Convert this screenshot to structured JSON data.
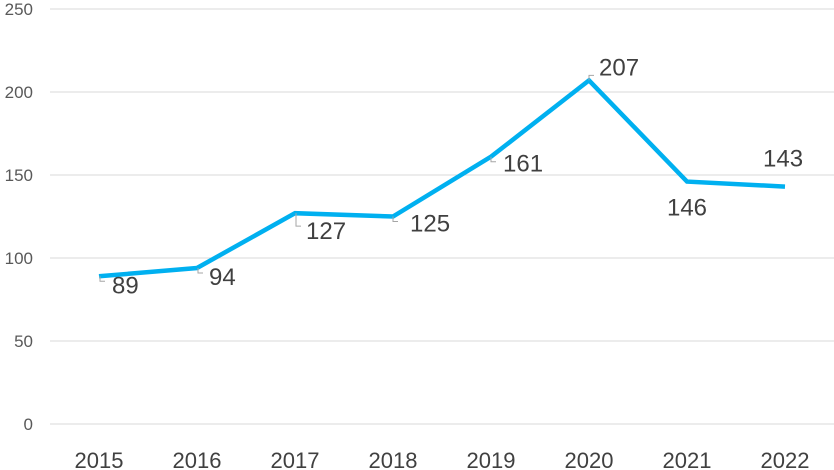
{
  "chart_data": {
    "type": "line",
    "title": "",
    "xlabel": "",
    "ylabel": "",
    "categories": [
      "2015",
      "2016",
      "2017",
      "2018",
      "2019",
      "2020",
      "2021",
      "2022"
    ],
    "series": [
      {
        "values": [
          89,
          94,
          127,
          125,
          161,
          207,
          146,
          143
        ],
        "color": "#00b0f0"
      }
    ],
    "data_labels": [
      "89",
      "94",
      "127",
      "125",
      "161",
      "207",
      "146",
      "143"
    ],
    "ylim": [
      0,
      250
    ],
    "yticks": [
      "0",
      "50",
      "100",
      "150",
      "200",
      "250"
    ],
    "grid": true,
    "legend": "none"
  }
}
